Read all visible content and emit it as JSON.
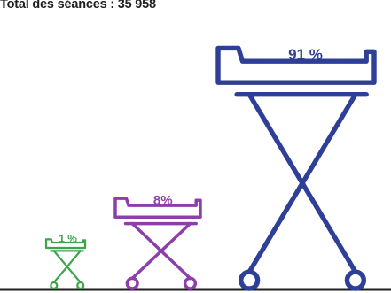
{
  "total_label": "Total des séances : 35 958",
  "chart_data": {
    "type": "bar",
    "categories": [
      "",
      "",
      ""
    ],
    "values": [
      1,
      8,
      91
    ],
    "value_labels": [
      "1 %",
      "8%",
      "91 %"
    ],
    "colors": [
      "#3ca54a",
      "#8c3fa8",
      "#2e3f97"
    ],
    "baseline_color": "#1f1f1f",
    "ylim": [
      0,
      100
    ]
  }
}
